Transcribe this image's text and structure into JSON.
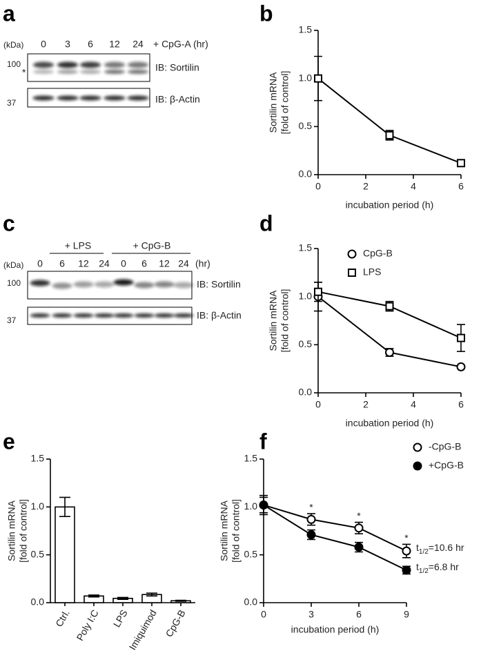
{
  "panel_labels": [
    "a",
    "b",
    "c",
    "d",
    "e",
    "f"
  ],
  "blot_a": {
    "unit": "(kDa)",
    "lanes": [
      "0",
      "3",
      "6",
      "12",
      "24"
    ],
    "treatment": "+ CpG-A (hr)",
    "rows": [
      {
        "marker": "100",
        "note": "*",
        "label": "IB: Sortilin"
      },
      {
        "marker": "37",
        "label": "IB: β-Actin"
      }
    ]
  },
  "blot_c": {
    "unit": "(kDa)",
    "groups": [
      "+ LPS",
      "+ CpG-B"
    ],
    "lanes": [
      "0",
      "6",
      "12",
      "24",
      "0",
      "6",
      "12",
      "24"
    ],
    "time_unit": "(hr)",
    "rows": [
      {
        "marker": "100",
        "label": "IB: Sortilin"
      },
      {
        "marker": "37",
        "label": "IB: β-Actin"
      }
    ]
  },
  "chart_data": [
    {
      "type": "line",
      "xlabel": "incubation period (h)",
      "ylabel": [
        "Sortilin mRNA",
        "[fold of control]"
      ],
      "x": [
        0,
        3,
        6
      ],
      "xlim": [
        0,
        6
      ],
      "xticks": [
        0,
        2,
        4,
        6
      ],
      "ylim": [
        0,
        1.5
      ],
      "yticks": [
        {
          "value": 0,
          "label": "0.0"
        },
        {
          "value": 0.5,
          "label": "0.5"
        },
        {
          "value": 1,
          "label": "1.0"
        },
        {
          "value": 1.5,
          "label": "1.5"
        }
      ],
      "series": [
        {
          "color": "#000000",
          "marker": "square",
          "filled": false,
          "values": [
            1.0,
            0.41,
            0.12
          ],
          "errors": [
            0.23,
            0.05,
            0.02
          ]
        }
      ]
    },
    {
      "type": "line",
      "xlabel": "incubation period (h)",
      "ylabel": [
        "Sortilin mRNA",
        "[fold of control]"
      ],
      "x": [
        0,
        3,
        6
      ],
      "xlim": [
        0,
        6
      ],
      "xticks": [
        0,
        2,
        4,
        6
      ],
      "ylim": [
        0,
        1.5
      ],
      "yticks": [
        {
          "value": 0,
          "label": "0.0"
        },
        {
          "value": 0.5,
          "label": "0.5"
        },
        {
          "value": 1,
          "label": "1.0"
        },
        {
          "value": 1.5,
          "label": "1.5"
        }
      ],
      "legend": "upper right",
      "series": [
        {
          "name": "CpG-B",
          "color": "#000000",
          "marker": "circle",
          "filled": false,
          "values": [
            1.0,
            0.42,
            0.27
          ],
          "errors": [
            0.15,
            0.04,
            0.01
          ]
        },
        {
          "name": "LPS",
          "color": "#000000",
          "marker": "square",
          "filled": false,
          "values": [
            1.05,
            0.9,
            0.57
          ],
          "errors": [
            0.1,
            0.05,
            0.14
          ]
        }
      ]
    },
    {
      "type": "bar",
      "ylabel": [
        "Sortilin mRNA",
        "[fold of control]"
      ],
      "categories": [
        "Ctrl.",
        "Poly I:C",
        "LPS",
        "Imiquimod",
        "CpG-B"
      ],
      "values": [
        1.0,
        0.07,
        0.045,
        0.085,
        0.02
      ],
      "errors": [
        0.1,
        0.01,
        0.01,
        0.015,
        0.005
      ],
      "color": "#ffffff",
      "ylim": [
        0,
        1.5
      ],
      "yticks": [
        {
          "value": 0,
          "label": "0.0"
        },
        {
          "value": 0.5,
          "label": "0.5"
        },
        {
          "value": 1,
          "label": "1.0"
        },
        {
          "value": 1.5,
          "label": "1.5"
        }
      ]
    },
    {
      "type": "line",
      "xlabel": "incubation period (h)",
      "ylabel": [
        "Sortilin mRNA",
        "[fold of control]"
      ],
      "x": [
        0,
        3,
        6,
        9
      ],
      "xlim": [
        0,
        9
      ],
      "xticks": [
        0,
        3,
        6,
        9
      ],
      "ylim": [
        0,
        1.5
      ],
      "yticks": [
        {
          "value": 0,
          "label": "0.0"
        },
        {
          "value": 0.5,
          "label": "0.5"
        },
        {
          "value": 1,
          "label": "1.0"
        },
        {
          "value": 1.5,
          "label": "1.5"
        }
      ],
      "legend": "upper right",
      "series": [
        {
          "name": "-CpG-B",
          "color": "#000000",
          "marker": "circle",
          "filled": false,
          "values": [
            1.02,
            0.87,
            0.78,
            0.54
          ],
          "errors": [
            0.1,
            0.06,
            0.06,
            0.07
          ],
          "fit_label": {
            "base": "t",
            "subscript": "1/2",
            "text": "=10.6 hr"
          }
        },
        {
          "name": "+CpG-B",
          "color": "#000000",
          "marker": "circle",
          "filled": true,
          "values": [
            1.02,
            0.71,
            0.58,
            0.34
          ],
          "errors": [
            0.08,
            0.05,
            0.05,
            0.04
          ],
          "fit_label": {
            "base": "t",
            "subscript": "1/2",
            "text": "=6.8 hr"
          }
        }
      ],
      "annotations": [
        {
          "x": 3,
          "text": "*"
        },
        {
          "x": 6,
          "text": "*"
        },
        {
          "x": 9,
          "text": "*"
        }
      ]
    }
  ]
}
